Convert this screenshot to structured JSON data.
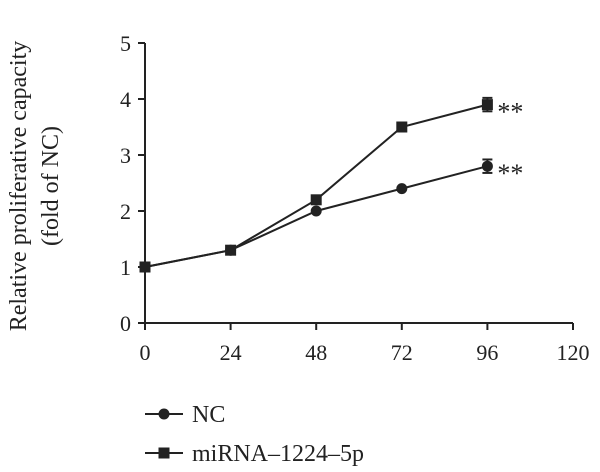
{
  "chart_data": {
    "type": "line",
    "title": "",
    "xlabel": "",
    "ylabel_line1": "Relative proliferative capacity",
    "ylabel_line2": "(fold of NC)",
    "x": [
      0,
      24,
      48,
      72,
      96
    ],
    "xlim": [
      0,
      120
    ],
    "ylim": [
      0,
      5
    ],
    "xticks": [
      "0",
      "24",
      "48",
      "72",
      "96",
      "120"
    ],
    "yticks": [
      "0",
      "1",
      "2",
      "3",
      "4",
      "5"
    ],
    "grid": false,
    "legend_position": "bottom-left",
    "series": [
      {
        "name": "NC",
        "marker": "circle",
        "color": "#222222",
        "values": [
          1.0,
          1.3,
          2.0,
          2.4,
          2.8
        ],
        "errors": [
          0,
          0,
          0,
          0,
          0.12
        ],
        "annotation": "**"
      },
      {
        "name": "miRNA–1224–5p",
        "marker": "square",
        "color": "#222222",
        "values": [
          1.0,
          1.3,
          2.2,
          3.5,
          3.9
        ],
        "errors": [
          0,
          0,
          0,
          0,
          0.12
        ],
        "annotation": "**"
      }
    ]
  }
}
